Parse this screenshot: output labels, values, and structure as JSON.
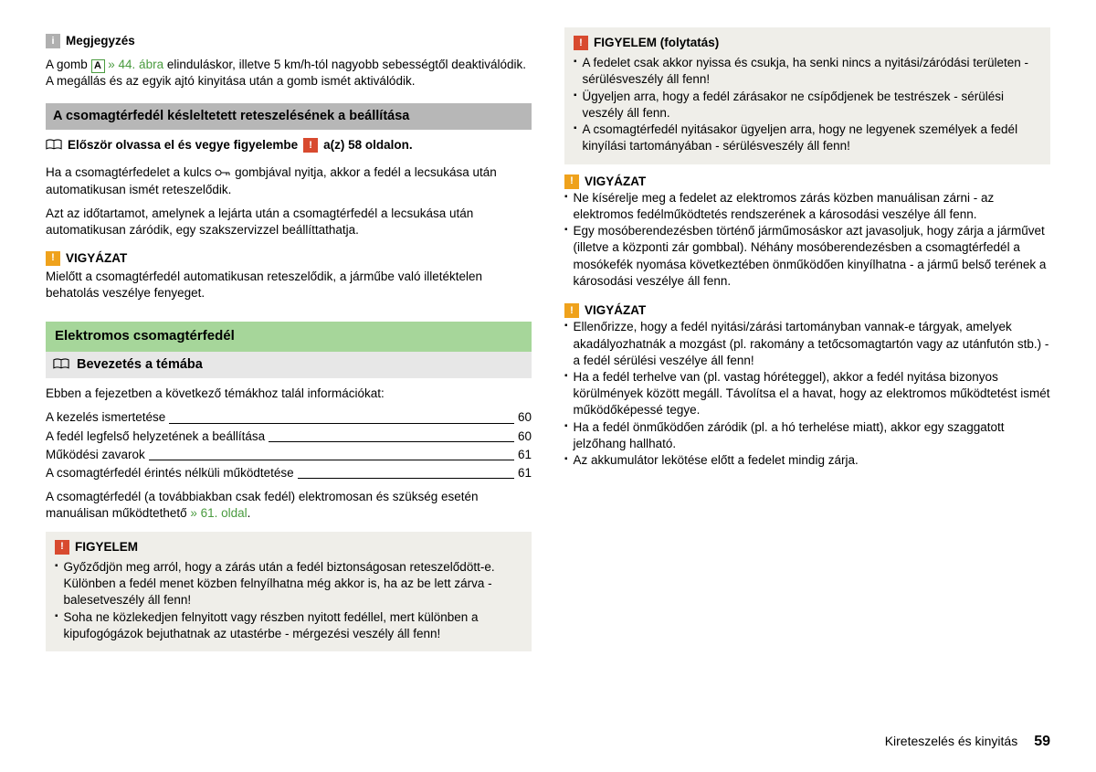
{
  "left": {
    "note": {
      "title": "Megjegyzés",
      "text_before": "A gomb ",
      "ref_letter": "A",
      "ref_link": " » 44. ábra",
      "text_after": " elinduláskor, illetve 5 km/h-tól nagyobb sebességtől deaktiválódik. A megállás és az egyik ajtó kinyitása után a gomb ismét aktiválódik."
    },
    "h_grey": "A csomagtérfedél késleltetett reteszelésének a beállítása",
    "readfirst": {
      "a": "Először olvassa el és vegye figyelembe",
      "b": "a(z) 58 oldalon."
    },
    "p1": "Ha a csomagtérfedelet a kulcs ⌧ gombjával nyitja, akkor a fedél a lecsukása után automatikusan ismét reteszelődik.",
    "p2": "Azt az időtartamot, amelynek a lejárta után a csomagtérfedél a lecsukása után automatikusan záródik, egy szakszervizzel beállíttathatja.",
    "caution1": {
      "title": "VIGYÁZAT",
      "text": "Mielőtt a csomagtérfedél automatikusan reteszelődik, a járműbe való illetéktelen behatolás veszélye fenyeget."
    },
    "h_green": "Elektromos csomagtérfedél",
    "h_sub": "Bevezetés a témába",
    "intro": "Ebben a fejezetben a következő témákhoz talál információkat:",
    "toc": [
      {
        "label": "A kezelés ismertetése",
        "page": "60"
      },
      {
        "label": "A fedél legfelső helyzetének a beállítása",
        "page": "60"
      },
      {
        "label": "Működési zavarok",
        "page": "61"
      },
      {
        "label": "A csomagtérfedél érintés nélküli működtetése",
        "page": "61"
      }
    ],
    "p3a": "A csomagtérfedél (a továbbiakban csak fedél) elektromosan és szükség esetén manuálisan működtethető ",
    "p3link": "» 61. oldal",
    "p3b": ".",
    "warn": {
      "title": "FIGYELEM",
      "items": [
        "Győződjön meg arról, hogy a zárás után a fedél biztonságosan reteszelődött-e. Különben a fedél menet közben felnyílhatna még akkor is, ha az be lett zárva - balesetveszély áll fenn!",
        "Soha ne közlekedjen felnyitott vagy részben nyitott fedéllel, mert különben a kipufogógázok bejuthatnak az utastérbe - mérgezési veszély áll fenn!"
      ]
    }
  },
  "right": {
    "warn_cont": {
      "title": "FIGYELEM (folytatás)",
      "items": [
        "A fedelet csak akkor nyissa és csukja, ha senki nincs a nyitási/záródási területen - sérülésveszély áll fenn!",
        "Ügyeljen arra, hogy a fedél zárásakor ne csípődjenek be testrészek - sérülési veszély áll fenn.",
        "A csomagtérfedél nyitásakor ügyeljen arra, hogy ne legyenek személyek a fedél kinyílási tartományában - sérülésveszély áll fenn!"
      ]
    },
    "caution2": {
      "title": "VIGYÁZAT",
      "items": [
        "Ne kísérelje meg a fedelet az elektromos zárás közben manuálisan zárni - az elektromos fedélműködtetés rendszerének a károsodási veszélye áll fenn.",
        "Egy mosóberendezésben történő járműmosáskor azt javasoljuk, hogy zárja a járművet (illetve a központi zár gombbal). Néhány mosóberendezésben a csomagtérfedél a mosókefék nyomása következtében önműködően kinyílhatna - a jármű belső terének a károsodási veszélye áll fenn."
      ]
    },
    "caution3": {
      "title": "VIGYÁZAT",
      "items": [
        "Ellenőrizze, hogy a fedél nyitási/zárási tartományban vannak-e tárgyak, amelyek akadályozhatnák a mozgást (pl. rakomány a tetőcsomagtartón vagy az utánfutón stb.) - a fedél sérülési veszélye áll fenn!",
        "Ha a fedél terhelve van (pl. vastag hóréteggel), akkor a fedél nyitása bizonyos körülmények között megáll. Távolítsa el a havat, hogy az elektromos működtetést ismét működőképessé tegye.",
        "Ha a fedél önműködően záródik (pl. a hó terhelése miatt), akkor egy szaggatott jelzőhang hallható.",
        "Az akkumulátor lekötése előtt a fedelet mindig zárja."
      ]
    }
  },
  "footer": {
    "section": "Kireteszelés és kinyitás",
    "page": "59"
  }
}
